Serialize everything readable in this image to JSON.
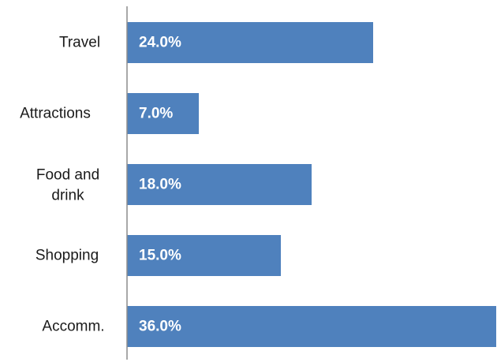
{
  "chart_data": {
    "type": "bar",
    "orientation": "horizontal",
    "categories": [
      "Travel",
      "Attractions",
      "Food and drink",
      "Shopping",
      "Accomm."
    ],
    "category_lines": [
      [
        "Travel"
      ],
      [
        "Attractions"
      ],
      [
        "Food",
        "and",
        "drink"
      ],
      [
        "Shopping"
      ],
      [
        "Accomm."
      ]
    ],
    "values": [
      24.0,
      7.0,
      18.0,
      15.0,
      36.0
    ],
    "data_labels": [
      "24.0%",
      "7.0%",
      "18.0%",
      "15.0%",
      "36.0%"
    ],
    "unit": "%",
    "title": "",
    "xlabel": "",
    "ylabel": "",
    "xlim": [
      0,
      36
    ],
    "grid": false,
    "legend": "none",
    "colors": {
      "bar": "#4f81bd",
      "axis": "#8c8c8c",
      "label_text": "#1a1a1a",
      "data_label_text": "#ffffff"
    }
  }
}
